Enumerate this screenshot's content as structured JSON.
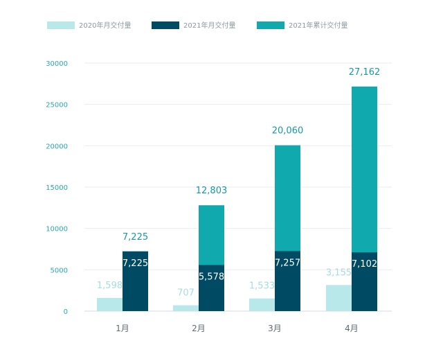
{
  "chart_data": {
    "type": "bar",
    "categories": [
      "1月",
      "2月",
      "3月",
      "4月"
    ],
    "series": [
      {
        "name": "2020年月交付量",
        "values": [
          1598,
          707,
          1533,
          3155
        ],
        "labels": [
          "1,598",
          "707",
          "1,533",
          "3,155"
        ],
        "color": "#b8e8ea"
      },
      {
        "name": "2021年月交付量",
        "values": [
          7225,
          5578,
          7257,
          7102
        ],
        "labels": [
          "7,225",
          "5,578",
          "7,257",
          "7,102"
        ],
        "color": "#004a63"
      },
      {
        "name": "2021年累计交付量",
        "values": [
          7225,
          12803,
          20060,
          27162
        ],
        "labels": [
          "7,225",
          "12,803",
          "20,060",
          "27,162"
        ],
        "color": "#10aaae"
      }
    ],
    "y_ticks": [
      "0",
      "5000",
      "10000",
      "15000",
      "20000",
      "25000",
      "30000"
    ],
    "ylim": [
      0,
      30000
    ],
    "grid": true,
    "legend_position": "top-left"
  }
}
